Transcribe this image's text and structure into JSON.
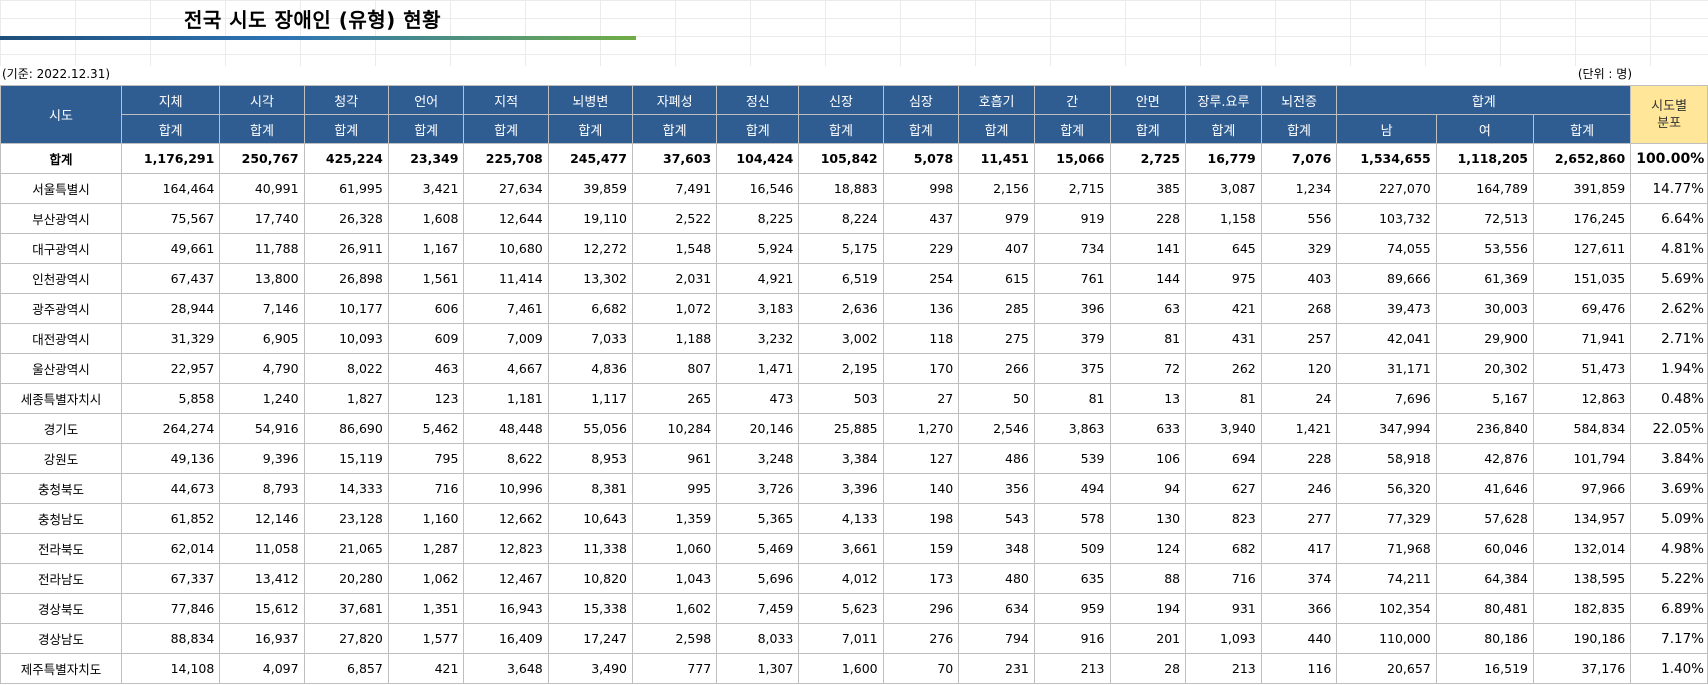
{
  "title": "전국 시도 장애인 (유형) 현황",
  "basis_date": "(기준: 2022.12.31)",
  "unit": "(단위 : 명)",
  "colors": {
    "header_bg": "#2f5d92",
    "dist_header_bg": "#ffe699"
  },
  "header": {
    "region_label": "시도",
    "types": [
      "지체",
      "시각",
      "청각",
      "언어",
      "지적",
      "뇌병변",
      "자폐성",
      "정신",
      "신장",
      "심장",
      "호흡기",
      "간",
      "안면",
      "장루.요루",
      "뇌전증"
    ],
    "type_sub": "합계",
    "total_label": "합계",
    "total_sub": [
      "남",
      "여",
      "합계"
    ],
    "dist_line1": "시도별",
    "dist_line2": "분포"
  },
  "rows": [
    {
      "region": "합계",
      "values": [
        "1,176,291",
        "250,767",
        "425,224",
        "23,349",
        "225,708",
        "245,477",
        "37,603",
        "104,424",
        "105,842",
        "5,078",
        "11,451",
        "15,066",
        "2,725",
        "16,779",
        "7,076",
        "1,534,655",
        "1,118,205",
        "2,652,860"
      ],
      "share": "100.00%"
    },
    {
      "region": "서울특별시",
      "values": [
        "164,464",
        "40,991",
        "61,995",
        "3,421",
        "27,634",
        "39,859",
        "7,491",
        "16,546",
        "18,883",
        "998",
        "2,156",
        "2,715",
        "385",
        "3,087",
        "1,234",
        "227,070",
        "164,789",
        "391,859"
      ],
      "share": "14.77%"
    },
    {
      "region": "부산광역시",
      "values": [
        "75,567",
        "17,740",
        "26,328",
        "1,608",
        "12,644",
        "19,110",
        "2,522",
        "8,225",
        "8,224",
        "437",
        "979",
        "919",
        "228",
        "1,158",
        "556",
        "103,732",
        "72,513",
        "176,245"
      ],
      "share": "6.64%"
    },
    {
      "region": "대구광역시",
      "values": [
        "49,661",
        "11,788",
        "26,911",
        "1,167",
        "10,680",
        "12,272",
        "1,548",
        "5,924",
        "5,175",
        "229",
        "407",
        "734",
        "141",
        "645",
        "329",
        "74,055",
        "53,556",
        "127,611"
      ],
      "share": "4.81%"
    },
    {
      "region": "인천광역시",
      "values": [
        "67,437",
        "13,800",
        "26,898",
        "1,561",
        "11,414",
        "13,302",
        "2,031",
        "4,921",
        "6,519",
        "254",
        "615",
        "761",
        "144",
        "975",
        "403",
        "89,666",
        "61,369",
        "151,035"
      ],
      "share": "5.69%"
    },
    {
      "region": "광주광역시",
      "values": [
        "28,944",
        "7,146",
        "10,177",
        "606",
        "7,461",
        "6,682",
        "1,072",
        "3,183",
        "2,636",
        "136",
        "285",
        "396",
        "63",
        "421",
        "268",
        "39,473",
        "30,003",
        "69,476"
      ],
      "share": "2.62%"
    },
    {
      "region": "대전광역시",
      "values": [
        "31,329",
        "6,905",
        "10,093",
        "609",
        "7,009",
        "7,033",
        "1,188",
        "3,232",
        "3,002",
        "118",
        "275",
        "379",
        "81",
        "431",
        "257",
        "42,041",
        "29,900",
        "71,941"
      ],
      "share": "2.71%"
    },
    {
      "region": "울산광역시",
      "values": [
        "22,957",
        "4,790",
        "8,022",
        "463",
        "4,667",
        "4,836",
        "807",
        "1,471",
        "2,195",
        "170",
        "266",
        "375",
        "72",
        "262",
        "120",
        "31,171",
        "20,302",
        "51,473"
      ],
      "share": "1.94%"
    },
    {
      "region": "세종특별자치시",
      "values": [
        "5,858",
        "1,240",
        "1,827",
        "123",
        "1,181",
        "1,117",
        "265",
        "473",
        "503",
        "27",
        "50",
        "81",
        "13",
        "81",
        "24",
        "7,696",
        "5,167",
        "12,863"
      ],
      "share": "0.48%"
    },
    {
      "region": "경기도",
      "values": [
        "264,274",
        "54,916",
        "86,690",
        "5,462",
        "48,448",
        "55,056",
        "10,284",
        "20,146",
        "25,885",
        "1,270",
        "2,546",
        "3,863",
        "633",
        "3,940",
        "1,421",
        "347,994",
        "236,840",
        "584,834"
      ],
      "share": "22.05%"
    },
    {
      "region": "강원도",
      "values": [
        "49,136",
        "9,396",
        "15,119",
        "795",
        "8,622",
        "8,953",
        "961",
        "3,248",
        "3,384",
        "127",
        "486",
        "539",
        "106",
        "694",
        "228",
        "58,918",
        "42,876",
        "101,794"
      ],
      "share": "3.84%"
    },
    {
      "region": "충청북도",
      "values": [
        "44,673",
        "8,793",
        "14,333",
        "716",
        "10,996",
        "8,381",
        "995",
        "3,726",
        "3,396",
        "140",
        "356",
        "494",
        "94",
        "627",
        "246",
        "56,320",
        "41,646",
        "97,966"
      ],
      "share": "3.69%"
    },
    {
      "region": "충청남도",
      "values": [
        "61,852",
        "12,146",
        "23,128",
        "1,160",
        "12,662",
        "10,643",
        "1,359",
        "5,365",
        "4,133",
        "198",
        "543",
        "578",
        "130",
        "823",
        "277",
        "77,329",
        "57,628",
        "134,957"
      ],
      "share": "5.09%"
    },
    {
      "region": "전라북도",
      "values": [
        "62,014",
        "11,058",
        "21,065",
        "1,287",
        "12,823",
        "11,338",
        "1,060",
        "5,469",
        "3,661",
        "159",
        "348",
        "509",
        "124",
        "682",
        "417",
        "71,968",
        "60,046",
        "132,014"
      ],
      "share": "4.98%"
    },
    {
      "region": "전라남도",
      "values": [
        "67,337",
        "13,412",
        "20,280",
        "1,062",
        "12,467",
        "10,820",
        "1,043",
        "5,696",
        "4,012",
        "173",
        "480",
        "635",
        "88",
        "716",
        "374",
        "74,211",
        "64,384",
        "138,595"
      ],
      "share": "5.22%"
    },
    {
      "region": "경상북도",
      "values": [
        "77,846",
        "15,612",
        "37,681",
        "1,351",
        "16,943",
        "15,338",
        "1,602",
        "7,459",
        "5,623",
        "296",
        "634",
        "959",
        "194",
        "931",
        "366",
        "102,354",
        "80,481",
        "182,835"
      ],
      "share": "6.89%"
    },
    {
      "region": "경상남도",
      "values": [
        "88,834",
        "16,937",
        "27,820",
        "1,577",
        "16,409",
        "17,247",
        "2,598",
        "8,033",
        "7,011",
        "276",
        "794",
        "916",
        "201",
        "1,093",
        "440",
        "110,000",
        "80,186",
        "190,186"
      ],
      "share": "7.17%"
    },
    {
      "region": "제주특별자치도",
      "values": [
        "14,108",
        "4,097",
        "6,857",
        "421",
        "3,648",
        "3,490",
        "777",
        "1,307",
        "1,600",
        "70",
        "231",
        "213",
        "28",
        "213",
        "116",
        "20,657",
        "16,519",
        "37,176"
      ],
      "share": "1.40%"
    }
  ]
}
